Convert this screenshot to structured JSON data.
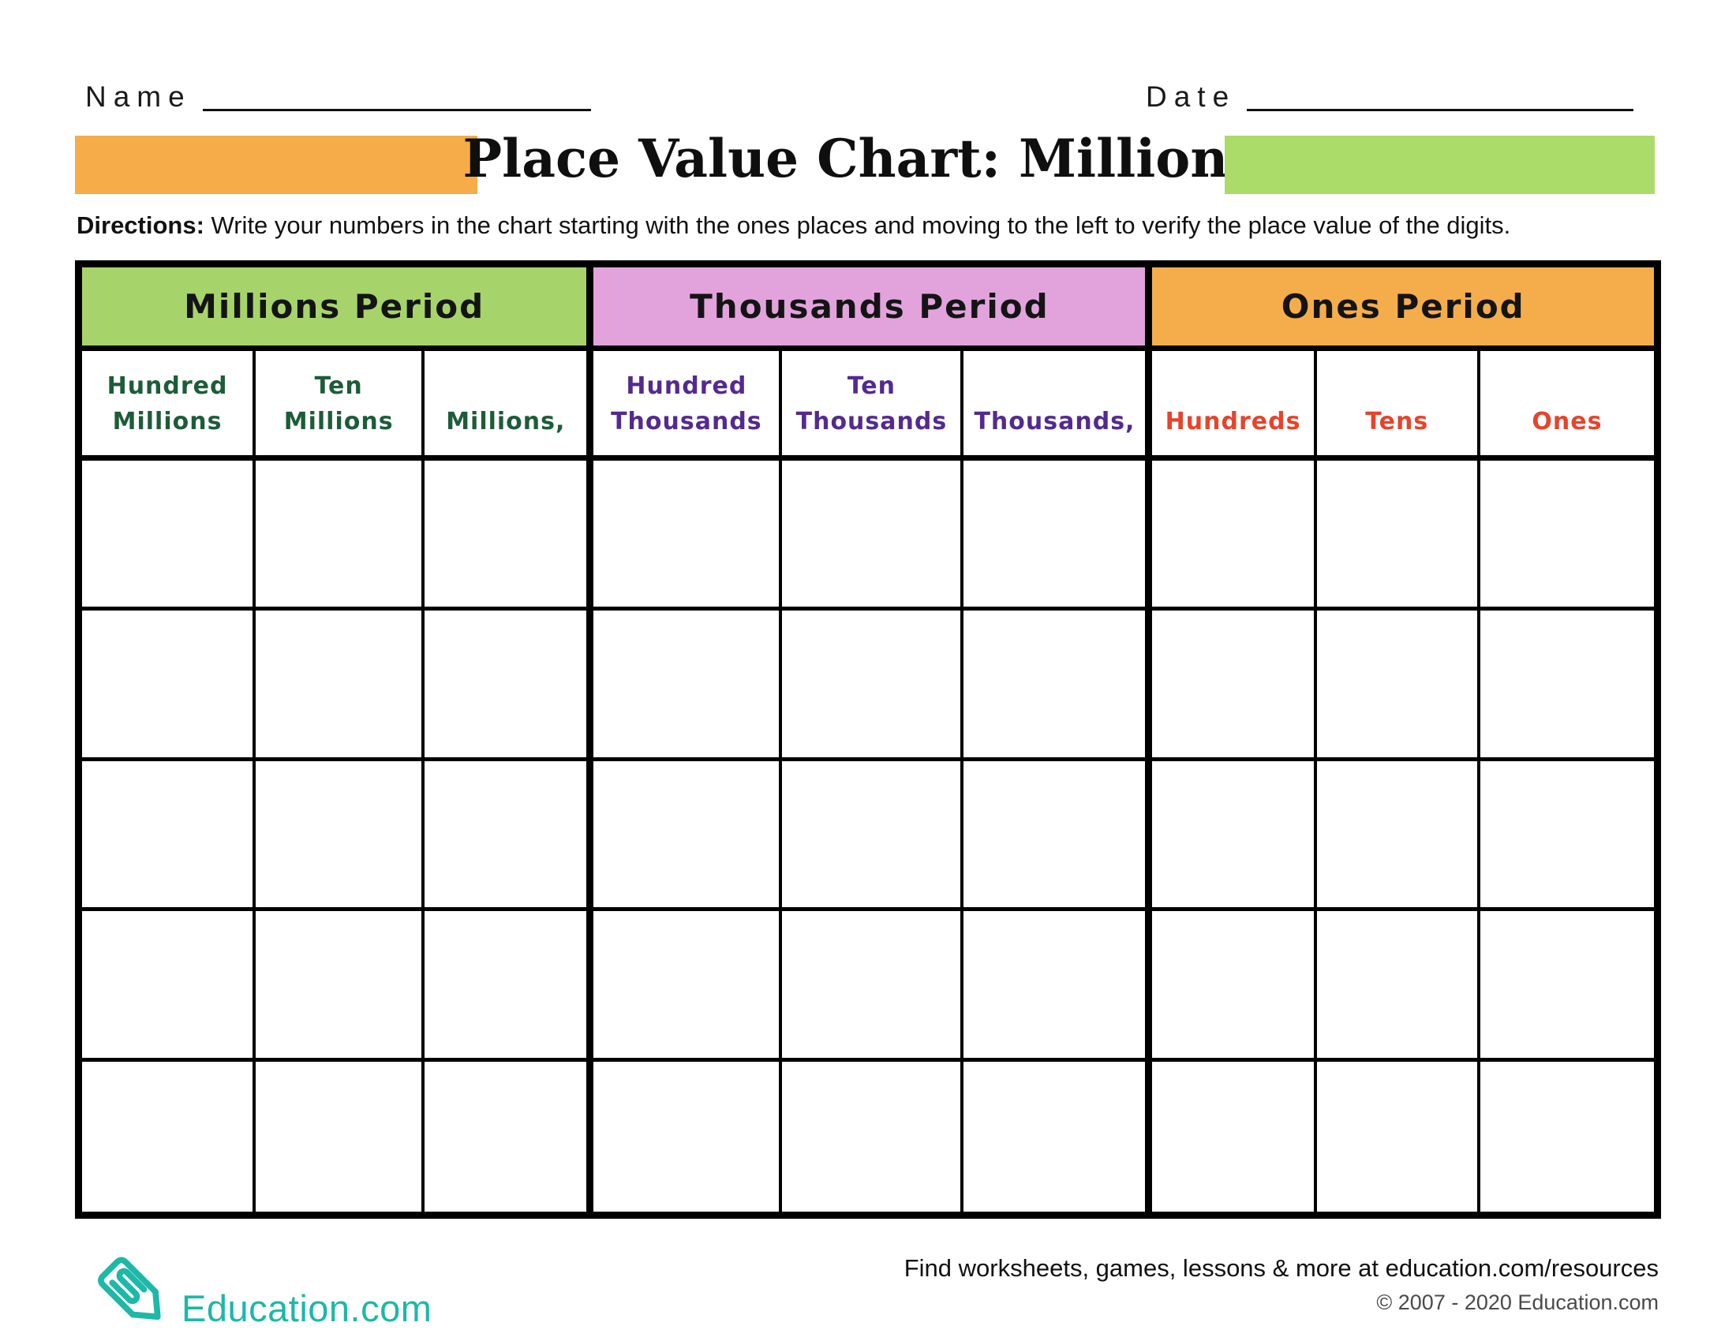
{
  "header": {
    "name_label": "Name",
    "date_label": "Date",
    "title": "Place Value Chart: Millions",
    "directions_label": "Directions:",
    "directions_text": " Write your numbers in the chart starting with the ones places and moving to the left to verify the place value of the digits."
  },
  "title_band": {
    "left_bar_color": "#F6AC49",
    "right_bar_color": "#ABDB69"
  },
  "table": {
    "row_count": 5,
    "periods": [
      {
        "label": "Millions Period",
        "bg": "#A7D46A"
      },
      {
        "label": "Thousands Period",
        "bg": "#E2A3DC"
      },
      {
        "label": "Ones Period",
        "bg": "#F5AD4C"
      }
    ],
    "columns": [
      {
        "label": "Hundred\nMillions",
        "color": "#1D5C39"
      },
      {
        "label": "Ten\nMillions",
        "color": "#1D5C39"
      },
      {
        "label": "Millions,",
        "color": "#1D5C39"
      },
      {
        "label": "Hundred\nThousands",
        "color": "#542A8F"
      },
      {
        "label": "Ten\nThousands",
        "color": "#542A8F"
      },
      {
        "label": "Thousands,",
        "color": "#542A8F"
      },
      {
        "label": "Hundreds",
        "color": "#E8432B"
      },
      {
        "label": "Tens",
        "color": "#E8432B"
      },
      {
        "label": "Ones",
        "color": "#E8432B"
      }
    ]
  },
  "footer": {
    "brand": "Education.com",
    "brand_color": "#1CB8A8",
    "resources_text": "Find worksheets, games, lessons & more at education.com/resources",
    "copyright_text": "© 2007 - 2020 Education.com"
  }
}
